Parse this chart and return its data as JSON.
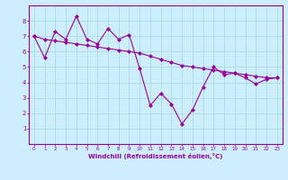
{
  "x": [
    0,
    1,
    2,
    3,
    4,
    5,
    6,
    7,
    8,
    9,
    10,
    11,
    12,
    13,
    14,
    15,
    16,
    17,
    18,
    19,
    20,
    21,
    22,
    23
  ],
  "y_jagged": [
    7.0,
    5.6,
    7.3,
    6.8,
    8.3,
    6.8,
    6.5,
    7.5,
    6.8,
    7.1,
    4.9,
    2.5,
    3.3,
    2.6,
    1.3,
    2.2,
    3.7,
    5.0,
    4.5,
    4.6,
    4.3,
    3.9,
    4.2,
    4.3
  ],
  "y_trend": [
    7.0,
    6.8,
    6.7,
    6.6,
    6.5,
    6.4,
    6.3,
    6.2,
    6.1,
    6.0,
    5.9,
    5.7,
    5.5,
    5.3,
    5.1,
    5.0,
    4.9,
    4.8,
    4.7,
    4.6,
    4.5,
    4.4,
    4.3,
    4.3
  ],
  "color": "#990099",
  "background": "#cceeff",
  "grid_color": "#aadddd",
  "xlabel": "Windchill (Refroidissement éolien,°C)",
  "ylim": [
    0,
    9
  ],
  "xlim": [
    -0.5,
    23.5
  ],
  "yticks": [
    1,
    2,
    3,
    4,
    5,
    6,
    7,
    8
  ],
  "xticks": [
    0,
    1,
    2,
    3,
    4,
    5,
    6,
    7,
    8,
    9,
    10,
    11,
    12,
    13,
    14,
    15,
    16,
    17,
    18,
    19,
    20,
    21,
    22,
    23
  ],
  "marker": "D",
  "markersize": 2.0,
  "linewidth": 0.8
}
